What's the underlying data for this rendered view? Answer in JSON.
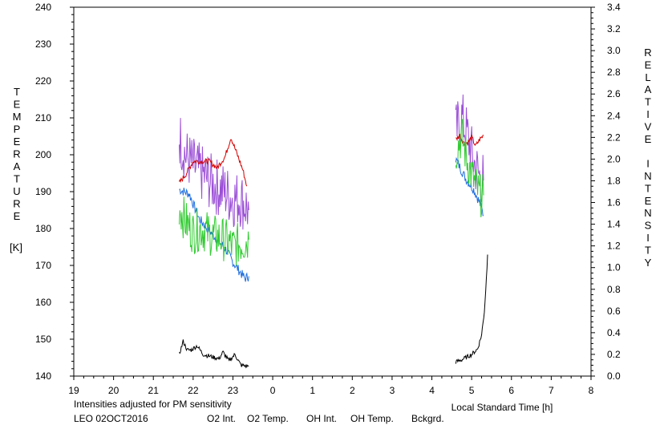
{
  "chart_data": {
    "type": "line",
    "title": "",
    "xlabel": "Local Standard Time [h]",
    "ylabel_left": "TEMPERATURE",
    "ylabel_left_unit": "[K]",
    "ylabel_right": "RELATIVE INTENSITY",
    "x_ticks": [
      "19",
      "20",
      "21",
      "22",
      "23",
      "0",
      "1",
      "2",
      "3",
      "4",
      "5",
      "6",
      "7",
      "8"
    ],
    "xlim": [
      19,
      32
    ],
    "y_left_ticks": [
      "240",
      "230",
      "220",
      "210",
      "200",
      "190",
      "180",
      "170",
      "160",
      "150",
      "140"
    ],
    "ylim_left": [
      140,
      240
    ],
    "y_right_ticks": [
      "3.4",
      "3.2",
      "3.0",
      "2.8",
      "2.6",
      "2.4",
      "2.2",
      "2.0",
      "1.8",
      "1.6",
      "1.4",
      "1.2",
      "1.0",
      "0.8",
      "0.6",
      "0.4",
      "0.2",
      "0.0"
    ],
    "ylim_right": [
      0.0,
      3.4
    ],
    "note": "Intensities adjusted for PM sensitivity",
    "station": "LEO 02OCT2016",
    "grid": false,
    "series": [
      {
        "name": "O2 Int.",
        "color": "#1f6fe0",
        "axis": "right",
        "segments": [
          [
            [
              21.65,
              1.72
            ],
            [
              21.9,
              1.68
            ],
            [
              22.15,
              1.45
            ],
            [
              22.5,
              1.3
            ],
            [
              22.8,
              1.18
            ],
            [
              23.0,
              1.05
            ],
            [
              23.2,
              0.95
            ],
            [
              23.3,
              0.9
            ],
            [
              23.4,
              0.92
            ]
          ],
          [
            [
              28.6,
              2.0
            ],
            [
              28.85,
              1.82
            ],
            [
              29.05,
              1.72
            ],
            [
              29.2,
              1.6
            ],
            [
              29.3,
              1.48
            ]
          ]
        ]
      },
      {
        "name": "O2 Temp.",
        "color": "#9b4fd6",
        "axis": "left",
        "segments": [
          [
            [
              21.65,
              205
            ],
            [
              21.8,
              200
            ],
            [
              22.0,
              197
            ],
            [
              22.2,
              195
            ],
            [
              22.5,
              192
            ],
            [
              22.8,
              190
            ],
            [
              23.0,
              188
            ],
            [
              23.2,
              188
            ],
            [
              23.4,
              185
            ]
          ],
          [
            [
              28.6,
              206
            ],
            [
              28.75,
              210
            ],
            [
              28.9,
              205
            ],
            [
              29.05,
              198
            ],
            [
              29.2,
              194
            ],
            [
              29.3,
              193
            ]
          ]
        ]
      },
      {
        "name": "OH Int.",
        "color": "#d40000",
        "axis": "right",
        "segments": [
          [
            [
              21.65,
              1.78
            ],
            [
              21.8,
              1.85
            ],
            [
              22.0,
              1.98
            ],
            [
              22.2,
              1.98
            ],
            [
              22.4,
              1.98
            ],
            [
              22.6,
              1.92
            ],
            [
              22.8,
              2.02
            ],
            [
              22.95,
              2.2
            ],
            [
              23.1,
              2.05
            ],
            [
              23.25,
              1.9
            ],
            [
              23.35,
              1.75
            ]
          ],
          [
            [
              28.6,
              2.18
            ],
            [
              28.7,
              2.22
            ],
            [
              28.8,
              2.15
            ],
            [
              28.9,
              2.15
            ],
            [
              29.0,
              2.2
            ],
            [
              29.1,
              2.12
            ],
            [
              29.2,
              2.18
            ],
            [
              29.3,
              2.22
            ]
          ]
        ]
      },
      {
        "name": "OH Temp.",
        "color": "#33cc33",
        "axis": "left",
        "segments": [
          [
            [
              21.65,
              186
            ],
            [
              21.8,
              182
            ],
            [
              22.0,
              179
            ],
            [
              22.2,
              180
            ],
            [
              22.5,
              178
            ],
            [
              22.8,
              177
            ],
            [
              23.0,
              175
            ],
            [
              23.2,
              176
            ],
            [
              23.4,
              177
            ]
          ],
          [
            [
              28.6,
              201
            ],
            [
              28.75,
              205
            ],
            [
              28.9,
              198
            ],
            [
              29.05,
              193
            ],
            [
              29.2,
              189
            ],
            [
              29.3,
              189
            ]
          ]
        ]
      },
      {
        "name": "Bckgrd.",
        "color": "#000000",
        "axis": "right",
        "segments": [
          [
            [
              21.65,
              0.2
            ],
            [
              21.75,
              0.32
            ],
            [
              21.85,
              0.24
            ],
            [
              21.95,
              0.24
            ],
            [
              22.1,
              0.28
            ],
            [
              22.25,
              0.2
            ],
            [
              22.45,
              0.18
            ],
            [
              22.65,
              0.16
            ],
            [
              22.75,
              0.22
            ],
            [
              22.9,
              0.14
            ],
            [
              23.05,
              0.2
            ],
            [
              23.2,
              0.1
            ],
            [
              23.4,
              0.09
            ]
          ],
          [
            [
              28.6,
              0.13
            ],
            [
              28.75,
              0.15
            ],
            [
              28.85,
              0.17
            ],
            [
              29.0,
              0.2
            ],
            [
              29.15,
              0.25
            ],
            [
              29.25,
              0.38
            ],
            [
              29.32,
              0.6
            ],
            [
              29.37,
              0.9
            ],
            [
              29.4,
              1.12
            ]
          ]
        ]
      }
    ]
  }
}
